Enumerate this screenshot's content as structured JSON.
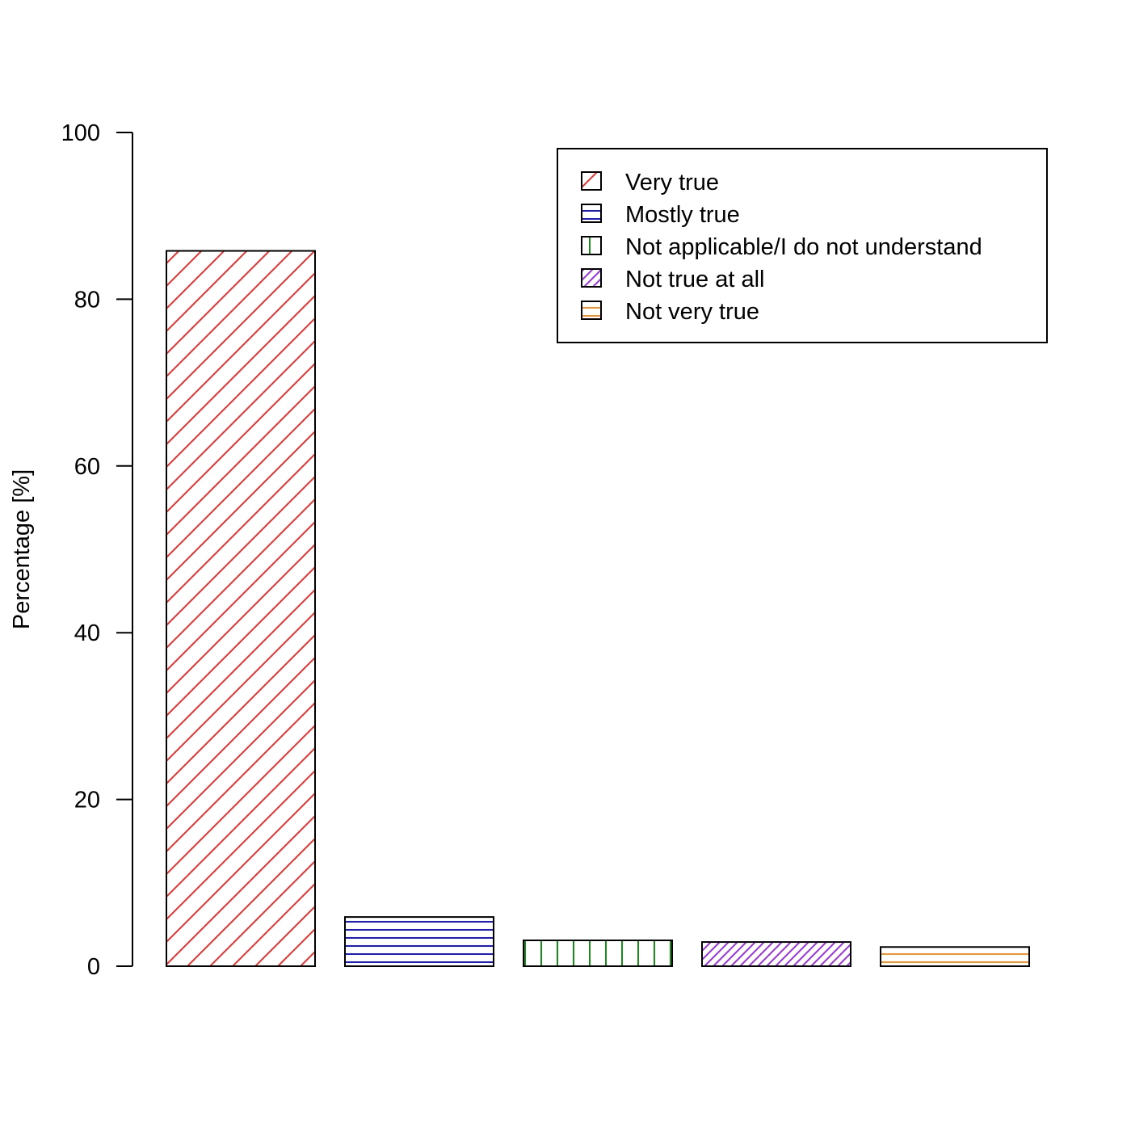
{
  "chart_data": {
    "type": "bar",
    "title": "",
    "xlabel": "",
    "ylabel": "Percentage [%]",
    "ylim": [
      0,
      100
    ],
    "yticks": [
      0,
      20,
      40,
      60,
      80,
      100
    ],
    "grid": false,
    "legend_position": "top-right",
    "categories": [
      "Very true",
      "Mostly true",
      "Not applicable/I do not understand",
      "Not true at all",
      "Not very true"
    ],
    "values": [
      85.8,
      5.9,
      3.1,
      2.9,
      2.3
    ],
    "colors": [
      "#e8312f",
      "#1a1acc",
      "#1a8c1a",
      "#9b30e0",
      "#f5922b"
    ],
    "hatch": [
      "diagonal",
      "horizontal",
      "vertical",
      "diagonal-dense",
      "horizontal"
    ]
  }
}
